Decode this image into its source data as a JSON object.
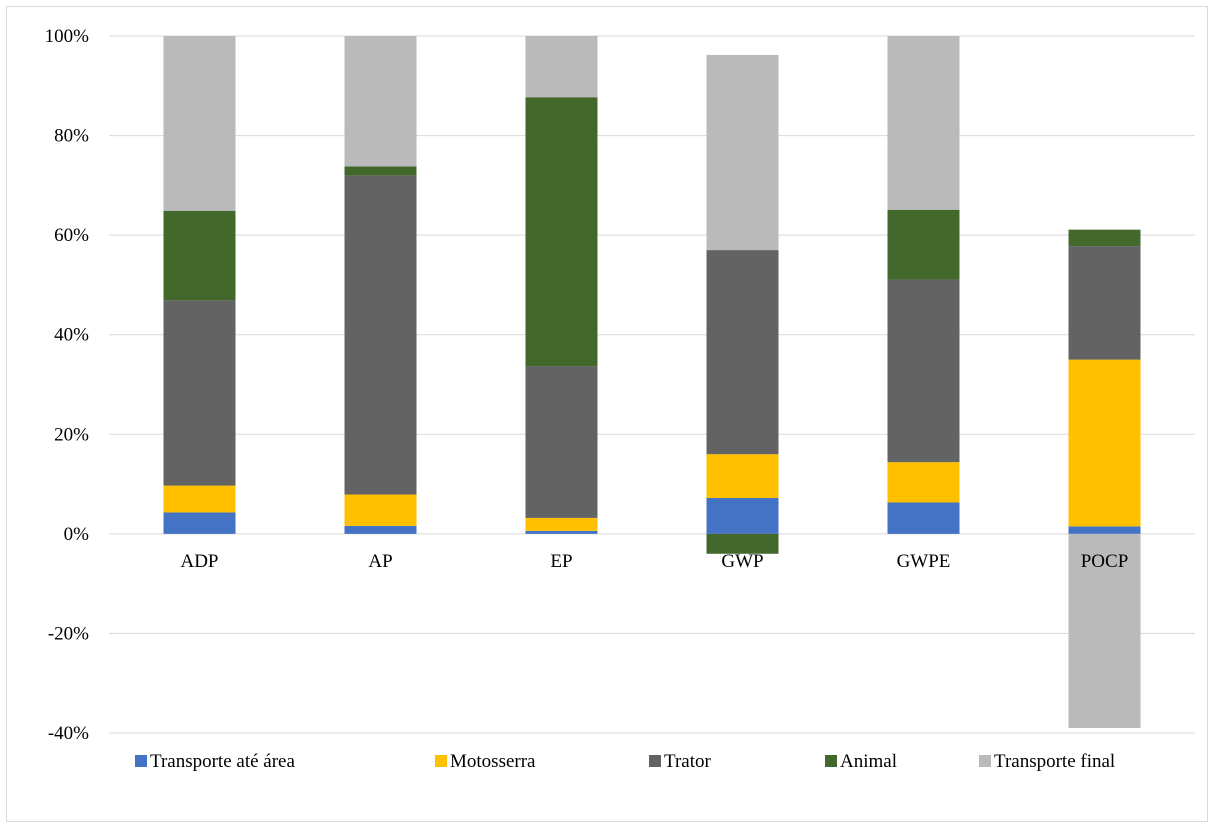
{
  "chart_data": {
    "type": "bar",
    "stacked": true,
    "title": "",
    "xlabel": "",
    "ylabel": "",
    "categories": [
      "ADP",
      "AP",
      "EP",
      "GWP",
      "GWPE",
      "POCP"
    ],
    "ylim": [
      -0.4,
      1.0
    ],
    "yticks": [
      {
        "value": 1.0,
        "label": "100%"
      },
      {
        "value": 0.8,
        "label": "80%"
      },
      {
        "value": 0.6,
        "label": "60%"
      },
      {
        "value": 0.4,
        "label": "40%"
      },
      {
        "value": 0.2,
        "label": "20%"
      },
      {
        "value": 0.0,
        "label": "0%"
      },
      {
        "value": -0.2,
        "label": "-20%"
      },
      {
        "value": -0.4,
        "label": "-40%"
      }
    ],
    "grid": true,
    "legend_position": "bottom",
    "series": [
      {
        "name": "Transporte até área",
        "color": "#4472c4",
        "values": [
          0.043,
          0.016,
          0.006,
          0.072,
          0.063,
          0.015
        ]
      },
      {
        "name": "Motosserra",
        "color": "#ffc000",
        "values": [
          0.054,
          0.063,
          0.026,
          0.088,
          0.081,
          0.335
        ]
      },
      {
        "name": "Trator",
        "color": "#636363",
        "values": [
          0.372,
          0.641,
          0.305,
          0.41,
          0.367,
          0.228
        ]
      },
      {
        "name": "Animal",
        "color": "#43682b",
        "values": [
          0.18,
          0.018,
          0.54,
          -0.04,
          0.14,
          0.033
        ]
      },
      {
        "name": "Transporte final",
        "color": "#bababa",
        "values": [
          0.351,
          0.262,
          0.123,
          0.392,
          0.349,
          -0.39
        ]
      }
    ]
  }
}
